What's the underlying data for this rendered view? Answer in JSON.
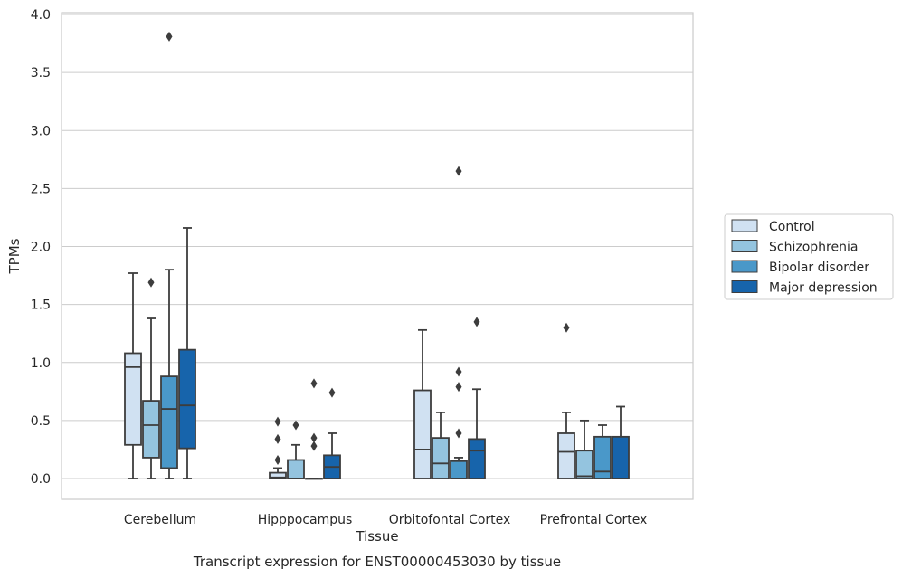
{
  "chart_data": {
    "type": "boxplot",
    "title": "Transcript expression for ENST00000453030 by tissue",
    "xlabel": "Tissue",
    "ylabel": "TPMs",
    "ylim": [
      -0.18,
      4.02
    ],
    "yticks": [
      0.0,
      0.5,
      1.0,
      1.5,
      2.0,
      2.5,
      3.0,
      3.5,
      4.0
    ],
    "ytick_labels": [
      "0.0",
      "0.5",
      "1.0",
      "1.5",
      "2.0",
      "2.5",
      "3.0",
      "3.5",
      "4.0"
    ],
    "grid": "horizontal",
    "legend_position": "right",
    "categories": [
      "Cerebellum",
      "Hipppocampus",
      "Orbitofontal Cortex",
      "Prefrontal Cortex"
    ],
    "series": [
      {
        "name": "Control",
        "color": "#d0e1f2",
        "boxes": [
          {
            "min": 0.0,
            "q1": 0.29,
            "median": 0.96,
            "q3": 1.08,
            "max": 1.77,
            "outliers": []
          },
          {
            "min": 0.0,
            "q1": 0.0,
            "median": 0.01,
            "q3": 0.05,
            "max": 0.09,
            "outliers": [
              0.16,
              0.34,
              0.49
            ]
          },
          {
            "min": 0.0,
            "q1": 0.0,
            "median": 0.25,
            "q3": 0.76,
            "max": 1.28,
            "outliers": []
          },
          {
            "min": 0.0,
            "q1": 0.0,
            "median": 0.23,
            "q3": 0.39,
            "max": 0.57,
            "outliers": [
              1.3
            ]
          }
        ]
      },
      {
        "name": "Schizophrenia",
        "color": "#94c4df",
        "boxes": [
          {
            "min": 0.0,
            "q1": 0.18,
            "median": 0.46,
            "q3": 0.67,
            "max": 1.38,
            "outliers": [
              1.69
            ]
          },
          {
            "min": 0.0,
            "q1": 0.0,
            "median": 0.0,
            "q3": 0.16,
            "max": 0.29,
            "outliers": [
              0.46
            ]
          },
          {
            "min": 0.0,
            "q1": 0.0,
            "median": 0.13,
            "q3": 0.35,
            "max": 0.57,
            "outliers": []
          },
          {
            "min": 0.0,
            "q1": 0.0,
            "median": 0.02,
            "q3": 0.24,
            "max": 0.5,
            "outliers": []
          }
        ]
      },
      {
        "name": "Bipolar disorder",
        "color": "#4a98c9",
        "boxes": [
          {
            "min": 0.0,
            "q1": 0.09,
            "median": 0.6,
            "q3": 0.88,
            "max": 1.8,
            "outliers": [
              3.81
            ]
          },
          {
            "min": 0.0,
            "q1": 0.0,
            "median": 0.0,
            "q3": 0.0,
            "max": 0.0,
            "outliers": [
              0.28,
              0.35,
              0.82
            ]
          },
          {
            "min": 0.0,
            "q1": 0.0,
            "median": 0.0,
            "q3": 0.15,
            "max": 0.18,
            "outliers": [
              0.39,
              0.79,
              0.92,
              2.65
            ]
          },
          {
            "min": 0.0,
            "q1": 0.0,
            "median": 0.06,
            "q3": 0.36,
            "max": 0.46,
            "outliers": []
          }
        ]
      },
      {
        "name": "Major depression",
        "color": "#1764ab",
        "boxes": [
          {
            "min": 0.0,
            "q1": 0.26,
            "median": 0.63,
            "q3": 1.11,
            "max": 2.16,
            "outliers": []
          },
          {
            "min": 0.0,
            "q1": 0.0,
            "median": 0.1,
            "q3": 0.2,
            "max": 0.39,
            "outliers": [
              0.74
            ]
          },
          {
            "min": 0.0,
            "q1": 0.0,
            "median": 0.24,
            "q3": 0.34,
            "max": 0.77,
            "outliers": [
              1.35
            ]
          },
          {
            "min": 0.0,
            "q1": 0.0,
            "median": 0.0,
            "q3": 0.36,
            "max": 0.62,
            "outliers": []
          }
        ]
      }
    ]
  }
}
